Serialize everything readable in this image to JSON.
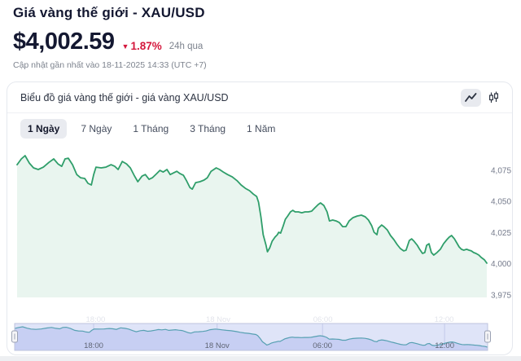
{
  "header": {
    "title": "Giá vàng thế giới - XAU/USD",
    "price": "$4,002.59",
    "change_direction": "▼",
    "change_percent": "1.87%",
    "change_period": "24h qua",
    "updated": "Cập nhật gần nhất vào 18-11-2025 14:33 (UTC +7)",
    "negative_color": "#d4173c"
  },
  "chart_card": {
    "title": "Biểu đồ giá vàng thế giới - giá vàng XAU/USD",
    "chart_type_toggles": [
      {
        "id": "line",
        "icon": "line-chart-icon",
        "active": true
      },
      {
        "id": "candlestick",
        "icon": "candlestick-icon",
        "active": false
      }
    ],
    "range_tabs": [
      {
        "id": "1d",
        "label": "1 Ngày",
        "active": true
      },
      {
        "id": "7d",
        "label": "7 Ngày",
        "active": false
      },
      {
        "id": "1m",
        "label": "1 Tháng",
        "active": false
      },
      {
        "id": "3m",
        "label": "3 Tháng",
        "active": false
      },
      {
        "id": "1y",
        "label": "1 Năm",
        "active": false
      }
    ]
  },
  "chart_data": {
    "type": "area",
    "title": "Biểu đồ giá vàng thế giới - giá vàng XAU/USD",
    "xlabel": "",
    "ylabel": "",
    "grid": false,
    "legend": "none",
    "line_color": "#2f9e6a",
    "area_fill": "#e9f5ef",
    "y_axis": {
      "position": "right",
      "range": [
        3973,
        4090
      ],
      "ticks": [
        {
          "value": 4075,
          "label": "4,075"
        },
        {
          "value": 4050,
          "label": "4,050"
        },
        {
          "value": 4025,
          "label": "4,025"
        },
        {
          "value": 4000,
          "label": "4,000"
        },
        {
          "value": 3975,
          "label": "3,975"
        }
      ]
    },
    "x_axis": {
      "labels": [
        {
          "t": 0.167,
          "label": "18:00"
        },
        {
          "t": 0.428,
          "label": "18 Nov"
        },
        {
          "t": 0.651,
          "label": "06:00"
        },
        {
          "t": 0.909,
          "label": "12:00"
        }
      ]
    },
    "series": [
      [
        0,
        4079.5
      ],
      [
        0.009,
        4084.1
      ],
      [
        0.017,
        4086.7
      ],
      [
        0.026,
        4080.8
      ],
      [
        0.035,
        4076.9
      ],
      [
        0.045,
        4075.6
      ],
      [
        0.056,
        4077.5
      ],
      [
        0.068,
        4081.4
      ],
      [
        0.078,
        4084.1
      ],
      [
        0.087,
        4080.1
      ],
      [
        0.095,
        4078.2
      ],
      [
        0.102,
        4084.1
      ],
      [
        0.109,
        4084.7
      ],
      [
        0.118,
        4079.5
      ],
      [
        0.127,
        4071.6
      ],
      [
        0.135,
        4069.0
      ],
      [
        0.144,
        4068.4
      ],
      [
        0.151,
        4064.5
      ],
      [
        0.158,
        4063.2
      ],
      [
        0.163,
        4071.6
      ],
      [
        0.168,
        4077.5
      ],
      [
        0.179,
        4076.9
      ],
      [
        0.189,
        4077.5
      ],
      [
        0.2,
        4079.5
      ],
      [
        0.208,
        4078.2
      ],
      [
        0.215,
        4075.6
      ],
      [
        0.224,
        4082.1
      ],
      [
        0.233,
        4080.1
      ],
      [
        0.241,
        4076.9
      ],
      [
        0.25,
        4070.3
      ],
      [
        0.257,
        4065.8
      ],
      [
        0.266,
        4070.3
      ],
      [
        0.273,
        4071.6
      ],
      [
        0.281,
        4067.7
      ],
      [
        0.288,
        4069.0
      ],
      [
        0.297,
        4072.3
      ],
      [
        0.304,
        4074.9
      ],
      [
        0.311,
        4073.6
      ],
      [
        0.319,
        4075.6
      ],
      [
        0.326,
        4071.6
      ],
      [
        0.333,
        4072.9
      ],
      [
        0.34,
        4074.2
      ],
      [
        0.347,
        4072.3
      ],
      [
        0.354,
        4071.0
      ],
      [
        0.361,
        4066.4
      ],
      [
        0.368,
        4061.2
      ],
      [
        0.373,
        4059.9
      ],
      [
        0.38,
        4065.1
      ],
      [
        0.389,
        4065.8
      ],
      [
        0.398,
        4067.1
      ],
      [
        0.405,
        4069.0
      ],
      [
        0.413,
        4074.2
      ],
      [
        0.424,
        4076.9
      ],
      [
        0.431,
        4075.6
      ],
      [
        0.439,
        4073.6
      ],
      [
        0.448,
        4071.6
      ],
      [
        0.458,
        4069.7
      ],
      [
        0.469,
        4066.4
      ],
      [
        0.477,
        4063.2
      ],
      [
        0.486,
        4060.5
      ],
      [
        0.495,
        4058.6
      ],
      [
        0.503,
        4055.9
      ],
      [
        0.51,
        4054.0
      ],
      [
        0.514,
        4049.4
      ],
      [
        0.519,
        4037.7
      ],
      [
        0.524,
        4023.3
      ],
      [
        0.53,
        4014.8
      ],
      [
        0.533,
        4009.6
      ],
      [
        0.538,
        4012.9
      ],
      [
        0.543,
        4018.1
      ],
      [
        0.549,
        4021.4
      ],
      [
        0.554,
        4023.3
      ],
      [
        0.557,
        4025.3
      ],
      [
        0.561,
        4024.6
      ],
      [
        0.566,
        4029.8
      ],
      [
        0.571,
        4035.7
      ],
      [
        0.576,
        4038.3
      ],
      [
        0.582,
        4041.6
      ],
      [
        0.587,
        4042.9
      ],
      [
        0.592,
        4041.6
      ],
      [
        0.599,
        4041.6
      ],
      [
        0.606,
        4040.9
      ],
      [
        0.613,
        4041.6
      ],
      [
        0.62,
        4041.6
      ],
      [
        0.627,
        4042.2
      ],
      [
        0.634,
        4044.9
      ],
      [
        0.641,
        4047.5
      ],
      [
        0.646,
        4048.8
      ],
      [
        0.653,
        4046.8
      ],
      [
        0.66,
        4041.6
      ],
      [
        0.665,
        4034.4
      ],
      [
        0.672,
        4035.1
      ],
      [
        0.679,
        4034.4
      ],
      [
        0.686,
        4033.1
      ],
      [
        0.693,
        4029.8
      ],
      [
        0.7,
        4029.8
      ],
      [
        0.707,
        4034.4
      ],
      [
        0.715,
        4037.0
      ],
      [
        0.724,
        4038.3
      ],
      [
        0.733,
        4039.0
      ],
      [
        0.741,
        4037.7
      ],
      [
        0.748,
        4035.1
      ],
      [
        0.755,
        4030.5
      ],
      [
        0.76,
        4025.3
      ],
      [
        0.766,
        4023.3
      ],
      [
        0.769,
        4028.5
      ],
      [
        0.776,
        4031.1
      ],
      [
        0.781,
        4029.8
      ],
      [
        0.788,
        4027.2
      ],
      [
        0.795,
        4022.7
      ],
      [
        0.802,
        4019.4
      ],
      [
        0.809,
        4015.5
      ],
      [
        0.816,
        4012.2
      ],
      [
        0.823,
        4010.3
      ],
      [
        0.828,
        4010.9
      ],
      [
        0.835,
        4018.7
      ],
      [
        0.84,
        4020.0
      ],
      [
        0.845,
        4018.1
      ],
      [
        0.852,
        4014.8
      ],
      [
        0.857,
        4011.6
      ],
      [
        0.863,
        4008.3
      ],
      [
        0.868,
        4009.0
      ],
      [
        0.872,
        4014.8
      ],
      [
        0.877,
        4016.1
      ],
      [
        0.882,
        4009.0
      ],
      [
        0.887,
        4007.0
      ],
      [
        0.894,
        4009.0
      ],
      [
        0.901,
        4011.6
      ],
      [
        0.908,
        4016.1
      ],
      [
        0.915,
        4019.4
      ],
      [
        0.92,
        4021.4
      ],
      [
        0.925,
        4022.7
      ],
      [
        0.931,
        4020.0
      ],
      [
        0.936,
        4016.8
      ],
      [
        0.941,
        4013.5
      ],
      [
        0.946,
        4011.6
      ],
      [
        0.951,
        4010.9
      ],
      [
        0.957,
        4011.6
      ],
      [
        0.962,
        4010.9
      ],
      [
        0.967,
        4010.3
      ],
      [
        0.972,
        4009.0
      ],
      [
        0.977,
        4008.3
      ],
      [
        0.983,
        4007.0
      ],
      [
        0.988,
        4005.1
      ],
      [
        0.995,
        4003.1
      ],
      [
        1,
        4000.5
      ]
    ],
    "navigator": {
      "bg": "#dfe4f8",
      "area_fill": "#c7cff3",
      "line_color": "#57a0b2",
      "outline": "#bcc3de",
      "grid_color": "#c3c9ea",
      "handle_fill": "#f5f5f7",
      "handle_stroke": "#9aa1b3",
      "label_color": "#5f6574"
    }
  }
}
